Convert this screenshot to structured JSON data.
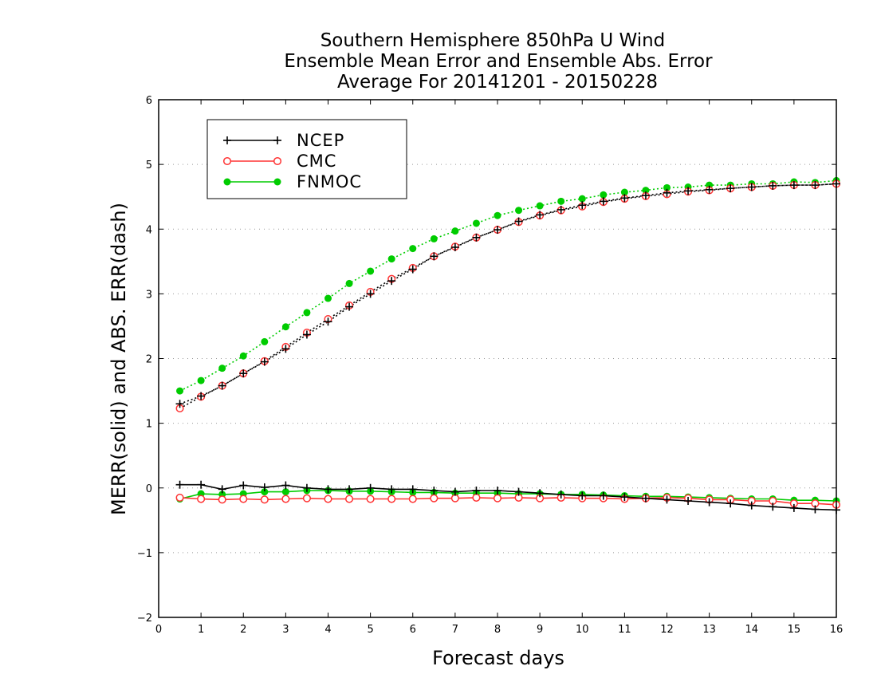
{
  "chart_data": {
    "type": "line",
    "title": [
      "Southern Hemisphere 850hPa U Wind",
      "Ensemble Mean Error and Ensemble Abs. Error",
      "Average For 20141201 - 20150228"
    ],
    "xlabel": "Forecast days",
    "ylabel": "MERR(solid) and ABS. ERR(dash)",
    "xlim": [
      0,
      16
    ],
    "ylim": [
      -2,
      6
    ],
    "xticks": [
      0,
      1,
      2,
      3,
      4,
      5,
      6,
      7,
      8,
      9,
      10,
      11,
      12,
      13,
      14,
      15,
      16
    ],
    "yticks": [
      -2,
      -1,
      0,
      1,
      2,
      3,
      4,
      5,
      6
    ],
    "ytick_labels": [
      "−2",
      "−1",
      "0",
      "1",
      "2",
      "3",
      "4",
      "5",
      "6"
    ],
    "grid": "horizontal dotted",
    "legend_position": "top-left",
    "x": [
      0.5,
      1,
      1.5,
      2,
      2.5,
      3,
      3.5,
      4,
      4.5,
      5,
      5.5,
      6,
      6.5,
      7,
      7.5,
      8,
      8.5,
      9,
      9.5,
      10,
      10.5,
      11,
      11.5,
      12,
      12.5,
      13,
      13.5,
      14,
      14.5,
      15,
      15.5,
      16
    ],
    "series": [
      {
        "name": "NCEP",
        "color": "#000000",
        "marker": "plus",
        "merr": [
          0.05,
          0.05,
          -0.02,
          0.04,
          0.01,
          0.04,
          0.0,
          -0.02,
          -0.02,
          0.0,
          -0.02,
          -0.02,
          -0.04,
          -0.06,
          -0.04,
          -0.04,
          -0.06,
          -0.08,
          -0.1,
          -0.12,
          -0.12,
          -0.14,
          -0.16,
          -0.18,
          -0.2,
          -0.22,
          -0.24,
          -0.27,
          -0.29,
          -0.31,
          -0.33,
          -0.34
        ],
        "abs_err": [
          1.3,
          1.42,
          1.58,
          1.77,
          1.95,
          2.15,
          2.37,
          2.57,
          2.8,
          3.0,
          3.2,
          3.38,
          3.58,
          3.72,
          3.87,
          3.99,
          4.12,
          4.22,
          4.3,
          4.37,
          4.43,
          4.48,
          4.52,
          4.56,
          4.59,
          4.61,
          4.63,
          4.65,
          4.67,
          4.68,
          4.68,
          4.7
        ]
      },
      {
        "name": "CMC",
        "color": "#ff3333",
        "marker": "open-circle",
        "merr": [
          -0.15,
          -0.17,
          -0.18,
          -0.17,
          -0.18,
          -0.17,
          -0.16,
          -0.17,
          -0.17,
          -0.17,
          -0.17,
          -0.17,
          -0.16,
          -0.16,
          -0.15,
          -0.16,
          -0.15,
          -0.16,
          -0.15,
          -0.16,
          -0.16,
          -0.17,
          -0.16,
          -0.15,
          -0.16,
          -0.18,
          -0.18,
          -0.2,
          -0.2,
          -0.24,
          -0.24,
          -0.26
        ],
        "abs_err": [
          1.23,
          1.41,
          1.58,
          1.77,
          1.96,
          2.18,
          2.4,
          2.61,
          2.82,
          3.03,
          3.23,
          3.4,
          3.58,
          3.73,
          3.87,
          3.99,
          4.11,
          4.21,
          4.29,
          4.35,
          4.42,
          4.47,
          4.51,
          4.54,
          4.58,
          4.6,
          4.63,
          4.65,
          4.67,
          4.68,
          4.68,
          4.7
        ]
      },
      {
        "name": "FNMOC",
        "color": "#00cc00",
        "marker": "filled-circle",
        "merr": [
          -0.17,
          -0.09,
          -0.1,
          -0.09,
          -0.06,
          -0.06,
          -0.04,
          -0.04,
          -0.05,
          -0.05,
          -0.06,
          -0.07,
          -0.07,
          -0.08,
          -0.08,
          -0.08,
          -0.09,
          -0.09,
          -0.1,
          -0.1,
          -0.11,
          -0.12,
          -0.13,
          -0.13,
          -0.14,
          -0.15,
          -0.16,
          -0.17,
          -0.17,
          -0.19,
          -0.19,
          -0.2
        ],
        "abs_err": [
          1.5,
          1.66,
          1.85,
          2.04,
          2.26,
          2.49,
          2.71,
          2.93,
          3.16,
          3.35,
          3.54,
          3.7,
          3.85,
          3.97,
          4.09,
          4.21,
          4.29,
          4.36,
          4.43,
          4.47,
          4.53,
          4.57,
          4.6,
          4.64,
          4.65,
          4.68,
          4.68,
          4.7,
          4.7,
          4.73,
          4.72,
          4.75
        ]
      }
    ]
  }
}
